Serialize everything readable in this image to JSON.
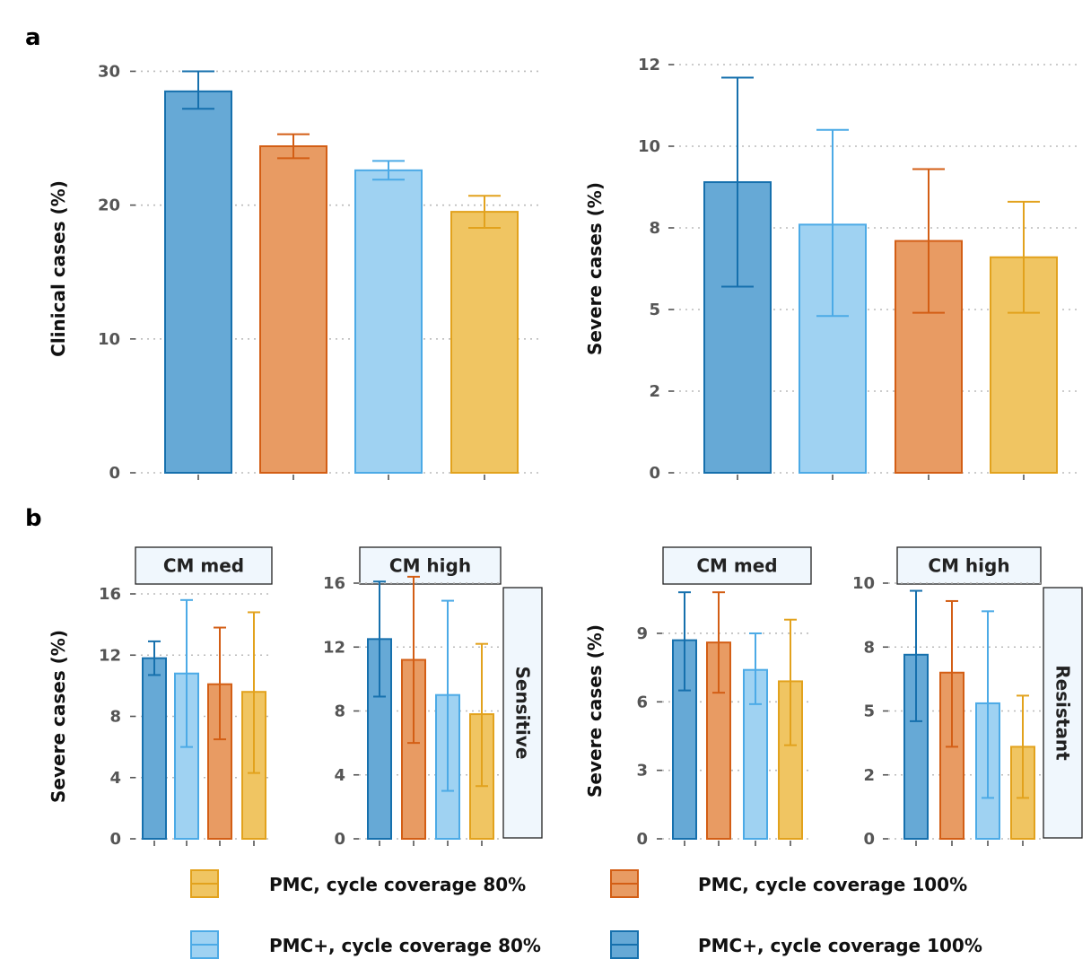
{
  "panel_labels": {
    "a": "a",
    "b": "b"
  },
  "colors": {
    "pmc_plus_100": {
      "fill": "#66a9d6",
      "stroke": "#1670ad"
    },
    "pmc_plus_80": {
      "fill": "#9fd2f2",
      "stroke": "#4caae6"
    },
    "pmc_100": {
      "fill": "#e89b63",
      "stroke": "#d35e15"
    },
    "pmc_80": {
      "fill": "#f0c562",
      "stroke": "#e2a21d"
    },
    "strip_fill": "#f0f7fd",
    "strip_stroke": "#222222",
    "axis_text": "#555555",
    "grid": "#bbbbbb"
  },
  "legend": [
    {
      "key": "pmc_80",
      "label": "PMC, cycle coverage 80%"
    },
    {
      "key": "pmc_100",
      "label": "PMC, cycle coverage 100%"
    },
    {
      "key": "pmc_plus_80",
      "label": "PMC+, cycle coverage 80%"
    },
    {
      "key": "pmc_plus_100",
      "label": "PMC+, cycle coverage 100%"
    }
  ],
  "chart_data": [
    {
      "id": "a_left",
      "type": "bar",
      "title": "",
      "ylabel": "Clinical cases (%)",
      "ylim": [
        0,
        30.5
      ],
      "yticks": [
        0,
        10,
        20,
        30
      ],
      "ytick_labels": [
        "0",
        "10",
        "20",
        "30"
      ],
      "grid": true,
      "series": [
        {
          "key": "pmc_plus_100",
          "value": 28.5,
          "err_low": 27.2,
          "err_high": 30.0
        },
        {
          "key": "pmc_100",
          "value": 24.4,
          "err_low": 23.5,
          "err_high": 25.3
        },
        {
          "key": "pmc_plus_80",
          "value": 22.6,
          "err_low": 21.9,
          "err_high": 23.3
        },
        {
          "key": "pmc_80",
          "value": 19.5,
          "err_low": 18.3,
          "err_high": 20.7
        }
      ]
    },
    {
      "id": "a_right",
      "type": "bar",
      "title": "",
      "ylabel": "Severe cases (%)",
      "ylim": [
        0,
        12.5
      ],
      "yticks": [
        0,
        2.5,
        5,
        7.5,
        10,
        12.5
      ],
      "ytick_labels": [
        "0",
        "2",
        "5",
        "8",
        "10",
        "12"
      ],
      "grid": true,
      "series": [
        {
          "key": "pmc_plus_100",
          "value": 8.9,
          "err_low": 5.7,
          "err_high": 12.1
        },
        {
          "key": "pmc_plus_80",
          "value": 7.6,
          "err_low": 4.8,
          "err_high": 10.5
        },
        {
          "key": "pmc_100",
          "value": 7.1,
          "err_low": 4.9,
          "err_high": 9.3
        },
        {
          "key": "pmc_80",
          "value": 6.6,
          "err_low": 4.9,
          "err_high": 8.3
        }
      ]
    },
    {
      "id": "b_sensitive_med",
      "type": "bar",
      "facet": "CM med",
      "ylabel": "Severe cases (%)",
      "ylim": [
        0,
        16
      ],
      "yticks": [
        0,
        4,
        8,
        12,
        16
      ],
      "ytick_labels": [
        "0",
        "4",
        "8",
        "12",
        "16"
      ],
      "grid": true,
      "series": [
        {
          "key": "pmc_plus_100",
          "value": 11.8,
          "err_low": 10.7,
          "err_high": 12.9
        },
        {
          "key": "pmc_plus_80",
          "value": 10.8,
          "err_low": 6.0,
          "err_high": 15.6
        },
        {
          "key": "pmc_100",
          "value": 10.1,
          "err_low": 6.5,
          "err_high": 13.8
        },
        {
          "key": "pmc_80",
          "value": 9.6,
          "err_low": 4.3,
          "err_high": 14.8
        }
      ]
    },
    {
      "id": "b_sensitive_high",
      "type": "bar",
      "facet": "CM high",
      "strip_right": "Sensitive",
      "ylabel": "",
      "ylim": [
        0,
        16
      ],
      "yticks": [
        0,
        4,
        8,
        12,
        16
      ],
      "ytick_labels": [
        "0",
        "4",
        "8",
        "12",
        "16"
      ],
      "grid": true,
      "series": [
        {
          "key": "pmc_plus_100",
          "value": 12.5,
          "err_low": 8.9,
          "err_high": 16.1
        },
        {
          "key": "pmc_100",
          "value": 11.2,
          "err_low": 6.0,
          "err_high": 16.4
        },
        {
          "key": "pmc_plus_80",
          "value": 9.0,
          "err_low": 3.0,
          "err_high": 14.9
        },
        {
          "key": "pmc_80",
          "value": 7.8,
          "err_low": 3.3,
          "err_high": 12.2
        }
      ]
    },
    {
      "id": "b_resistant_med",
      "type": "bar",
      "facet": "CM med",
      "ylabel": "Severe cases (%)",
      "ylim": [
        0,
        11.2
      ],
      "yticks": [
        0,
        3,
        6,
        9
      ],
      "ytick_labels": [
        "0",
        "3",
        "6",
        "9"
      ],
      "grid": true,
      "series": [
        {
          "key": "pmc_plus_100",
          "value": 8.7,
          "err_low": 6.5,
          "err_high": 10.8
        },
        {
          "key": "pmc_100",
          "value": 8.6,
          "err_low": 6.4,
          "err_high": 10.8
        },
        {
          "key": "pmc_plus_80",
          "value": 7.4,
          "err_low": 5.9,
          "err_high": 9.0
        },
        {
          "key": "pmc_80",
          "value": 6.9,
          "err_low": 4.1,
          "err_high": 9.6
        }
      ]
    },
    {
      "id": "b_resistant_high",
      "type": "bar",
      "facet": "CM high",
      "strip_right": "Resistant",
      "ylabel": "",
      "ylim": [
        0,
        10
      ],
      "yticks": [
        0,
        2.5,
        5,
        7.5,
        10
      ],
      "ytick_labels": [
        "0",
        "2",
        "5",
        "8",
        "10"
      ],
      "grid": true,
      "series": [
        {
          "key": "pmc_plus_100",
          "value": 7.2,
          "err_low": 4.6,
          "err_high": 9.7
        },
        {
          "key": "pmc_100",
          "value": 6.5,
          "err_low": 3.6,
          "err_high": 9.3
        },
        {
          "key": "pmc_plus_80",
          "value": 5.3,
          "err_low": 1.6,
          "err_high": 8.9
        },
        {
          "key": "pmc_80",
          "value": 3.6,
          "err_low": 1.6,
          "err_high": 5.6
        }
      ]
    }
  ]
}
